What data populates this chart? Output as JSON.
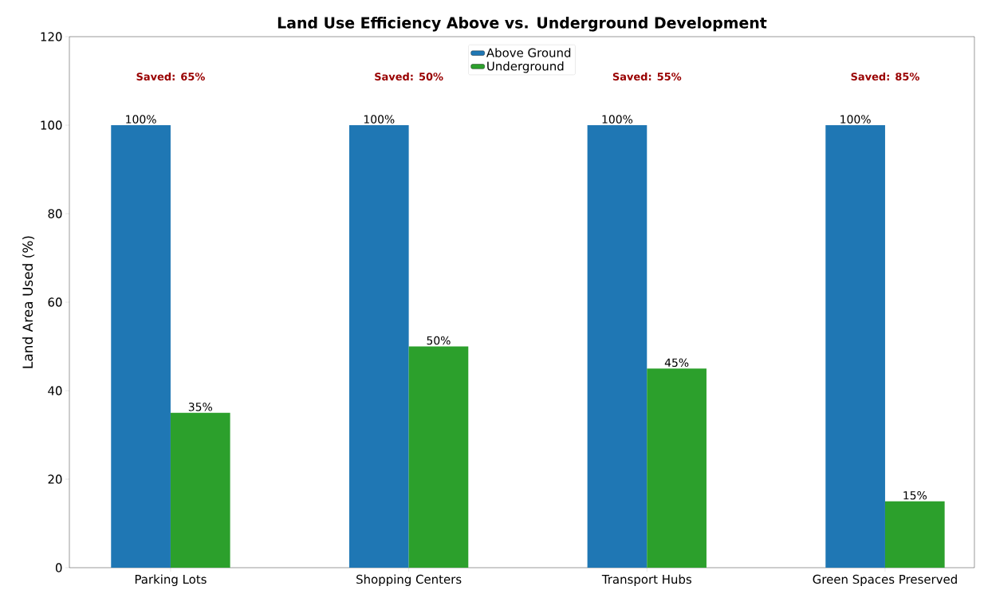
{
  "chart_data": {
    "type": "bar",
    "title": "Land Use Efficiency Above vs. Underground Development",
    "ylabel": "Land Area Used (%)",
    "categories": [
      "Parking Lots",
      "Shopping Centers",
      "Transport Hubs",
      "Green Spaces Preserved"
    ],
    "series": [
      {
        "name": "Above Ground",
        "color": "#1f77b4",
        "values": [
          100,
          100,
          100,
          100
        ],
        "value_labels": [
          "100%",
          "100%",
          "100%",
          "100%"
        ]
      },
      {
        "name": "Underground",
        "color": "#2ca02c",
        "values": [
          35,
          50,
          45,
          15
        ],
        "value_labels": [
          "35%",
          "50%",
          "45%",
          "15%"
        ]
      }
    ],
    "ylim": [
      0,
      120
    ],
    "yticks": [
      0,
      20,
      40,
      60,
      80,
      100,
      120
    ],
    "grid": false,
    "legend": "top",
    "annotations": [
      "Saved: 65%",
      "Saved: 50%",
      "Saved: 55%",
      "Saved: 85%"
    ]
  }
}
